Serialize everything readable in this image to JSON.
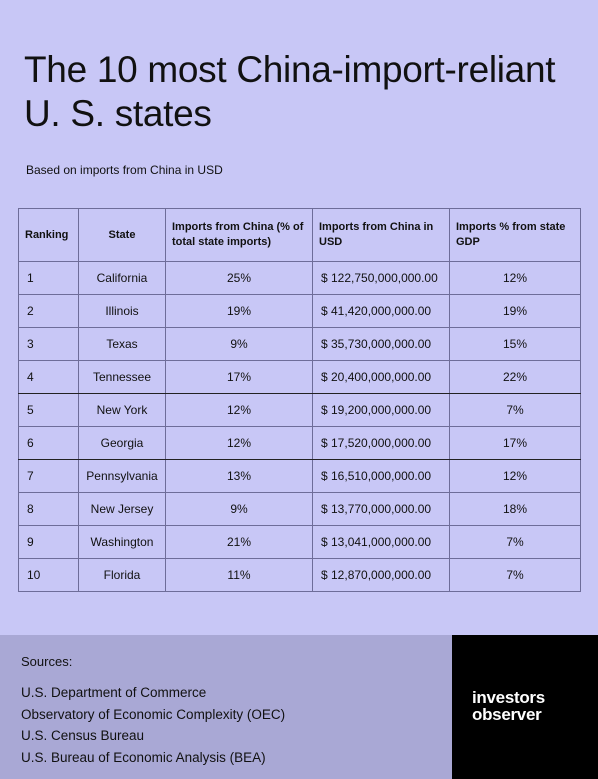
{
  "header": {
    "title": "The 10 most China-import-reliant U. S. states",
    "subtitle": "Based on imports from China in USD"
  },
  "table": {
    "columns": [
      "Ranking",
      "State",
      "Imports from China (% of total state imports)",
      "Imports from China in USD",
      "Imports % from state GDP"
    ],
    "rows": [
      [
        "1",
        "California",
        "25%",
        "$ 122,750,000,000.00",
        "12%"
      ],
      [
        "2",
        "Illinois",
        "19%",
        "$ 41,420,000,000.00",
        "19%"
      ],
      [
        "3",
        "Texas",
        "9%",
        "$ 35,730,000,000.00",
        "15%"
      ],
      [
        "4",
        "Tennessee",
        "17%",
        "$ 20,400,000,000.00",
        "22%"
      ],
      [
        "5",
        "New York",
        "12%",
        "$ 19,200,000,000.00",
        "7%"
      ],
      [
        "6",
        "Georgia",
        "12%",
        "$ 17,520,000,000.00",
        "17%"
      ],
      [
        "7",
        "Pennsylvania",
        "13%",
        "$ 16,510,000,000.00",
        "12%"
      ],
      [
        "8",
        "New Jersey",
        "9%",
        "$ 13,770,000,000.00",
        "18%"
      ],
      [
        "9",
        "Washington",
        "21%",
        "$ 13,041,000,000.00",
        "7%"
      ],
      [
        "10",
        "Florida",
        "11%",
        "$ 12,870,000,000.00",
        "7%"
      ]
    ]
  },
  "sources": {
    "heading": "Sources:",
    "items": [
      "U.S. Department of Commerce",
      "Observatory of Economic Complexity (OEC)",
      "U.S. Census Bureau",
      "U.S. Bureau of Economic Analysis (BEA)"
    ]
  },
  "logo": [
    "investors",
    "observer"
  ]
}
